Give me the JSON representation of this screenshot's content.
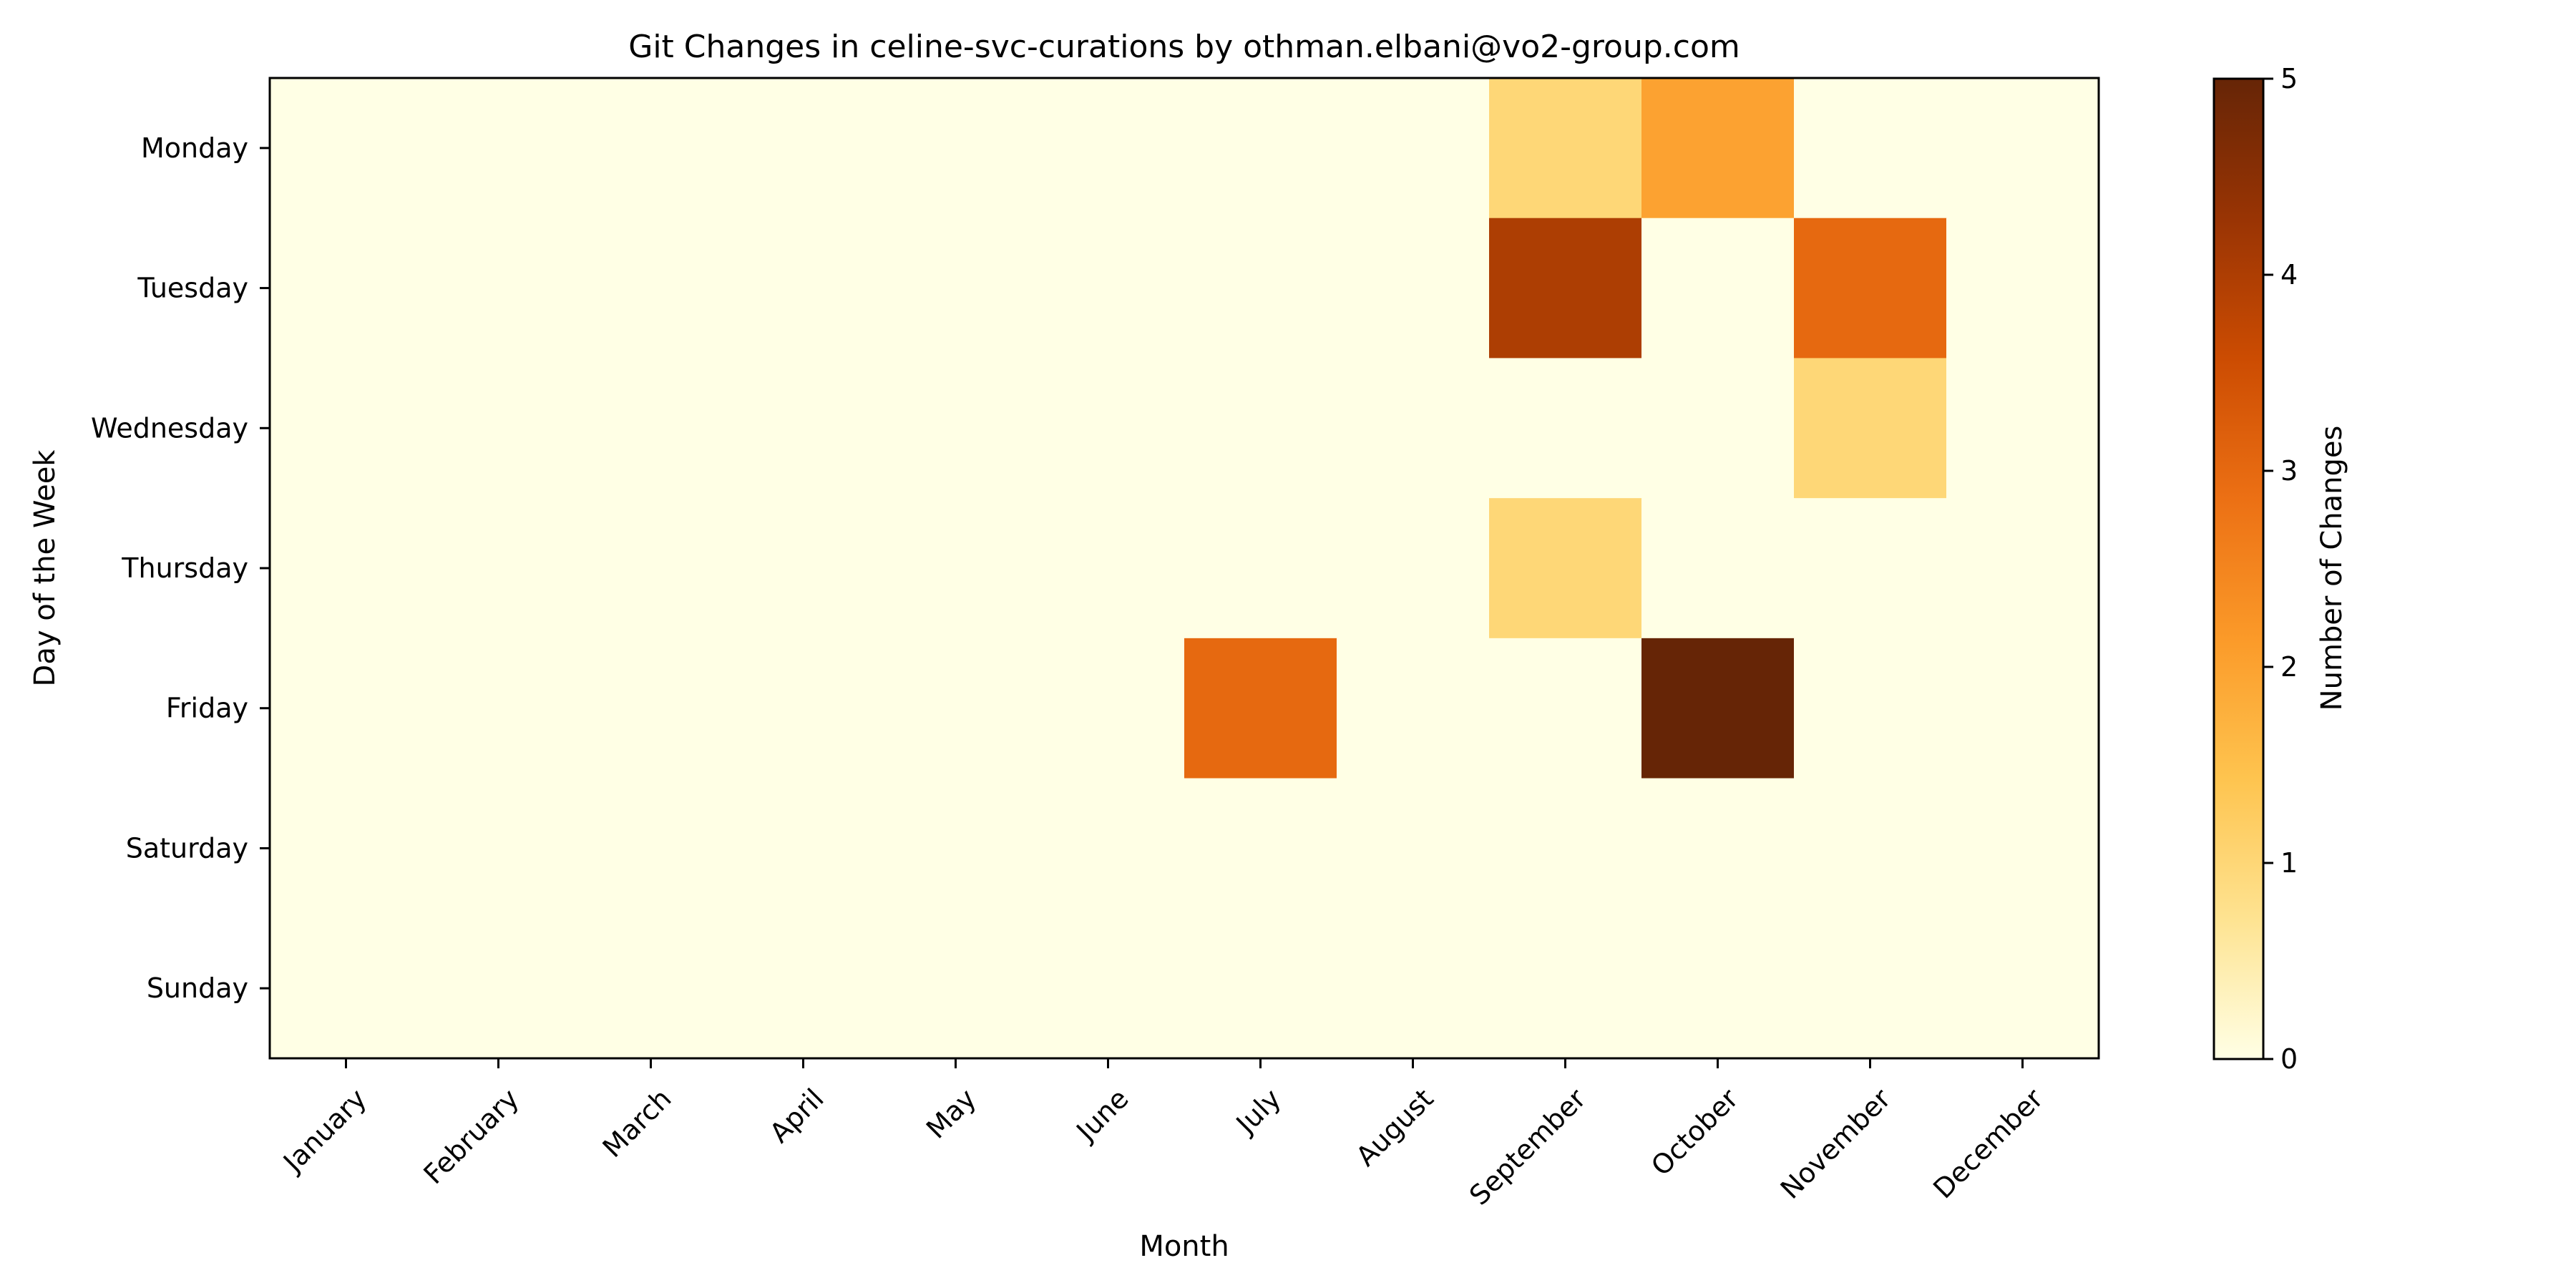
{
  "chart_data": {
    "type": "heatmap",
    "title": "Git Changes in celine-svc-curations by othman.elbani@vo2-group.com",
    "xlabel": "Month",
    "ylabel": "Day of the Week",
    "x_categories": [
      "January",
      "February",
      "March",
      "April",
      "May",
      "June",
      "July",
      "August",
      "September",
      "October",
      "November",
      "December"
    ],
    "y_categories": [
      "Monday",
      "Tuesday",
      "Wednesday",
      "Thursday",
      "Friday",
      "Saturday",
      "Sunday"
    ],
    "values": [
      [
        0,
        0,
        0,
        0,
        0,
        0,
        0,
        0,
        1,
        2,
        0,
        0
      ],
      [
        0,
        0,
        0,
        0,
        0,
        0,
        0,
        0,
        4,
        0,
        3,
        0
      ],
      [
        0,
        0,
        0,
        0,
        0,
        0,
        0,
        0,
        0,
        0,
        1,
        0
      ],
      [
        0,
        0,
        0,
        0,
        0,
        0,
        0,
        0,
        1,
        0,
        0,
        0
      ],
      [
        0,
        0,
        0,
        0,
        0,
        0,
        3,
        0,
        0,
        5,
        0,
        0
      ],
      [
        0,
        0,
        0,
        0,
        0,
        0,
        0,
        0,
        0,
        0,
        0,
        0
      ],
      [
        0,
        0,
        0,
        0,
        0,
        0,
        0,
        0,
        0,
        0,
        0,
        0
      ]
    ],
    "colorbar": {
      "label": "Number of Changes",
      "min": 0,
      "max": 5,
      "ticks": [
        0,
        1,
        2,
        3,
        4,
        5
      ],
      "colormap": "YlOrBr",
      "colors": [
        "#ffffe5",
        "#fee391",
        "#fec44f",
        "#fb9a29",
        "#ec7014",
        "#cc4c02",
        "#993404",
        "#662506"
      ]
    },
    "grid": false
  }
}
